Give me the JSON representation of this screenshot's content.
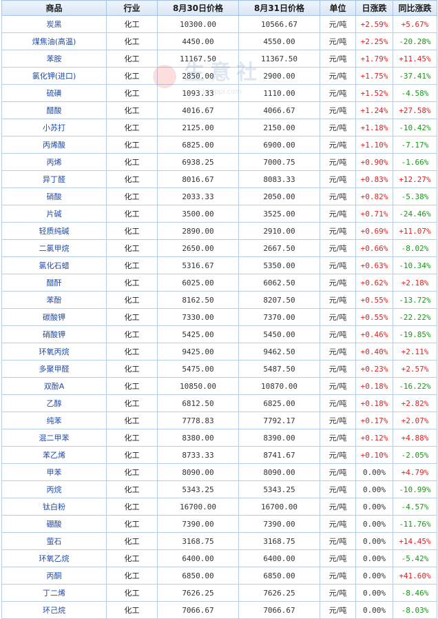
{
  "table": {
    "headers": {
      "product": "商品",
      "industry": "行业",
      "price_aug30": "8月30日价格",
      "price_aug31": "8月31日价格",
      "unit": "单位",
      "daily_change": "日涨跌",
      "yoy_change": "同比涨跌"
    },
    "rows": [
      {
        "product": "炭黑",
        "industry": "化工",
        "price_aug30": "10300.00",
        "price_aug31": "10566.67",
        "unit": "元/吨",
        "daily_change": "+2.59%",
        "yoy_change": "+5.67%"
      },
      {
        "product": "煤焦油(高温)",
        "industry": "化工",
        "price_aug30": "4450.00",
        "price_aug31": "4550.00",
        "unit": "元/吨",
        "daily_change": "+2.25%",
        "yoy_change": "-20.28%"
      },
      {
        "product": "苯胺",
        "industry": "化工",
        "price_aug30": "11167.50",
        "price_aug31": "11367.50",
        "unit": "元/吨",
        "daily_change": "+1.79%",
        "yoy_change": "+11.45%"
      },
      {
        "product": "氯化钾(进口)",
        "industry": "化工",
        "price_aug30": "2850.00",
        "price_aug31": "2900.00",
        "unit": "元/吨",
        "daily_change": "+1.75%",
        "yoy_change": "-37.41%"
      },
      {
        "product": "硫磺",
        "industry": "化工",
        "price_aug30": "1093.33",
        "price_aug31": "1110.00",
        "unit": "元/吨",
        "daily_change": "+1.52%",
        "yoy_change": "-4.58%"
      },
      {
        "product": "醋酸",
        "industry": "化工",
        "price_aug30": "4016.67",
        "price_aug31": "4066.67",
        "unit": "元/吨",
        "daily_change": "+1.24%",
        "yoy_change": "+27.58%"
      },
      {
        "product": "小苏打",
        "industry": "化工",
        "price_aug30": "2125.00",
        "price_aug31": "2150.00",
        "unit": "元/吨",
        "daily_change": "+1.18%",
        "yoy_change": "-10.42%"
      },
      {
        "product": "丙烯酸",
        "industry": "化工",
        "price_aug30": "6825.00",
        "price_aug31": "6900.00",
        "unit": "元/吨",
        "daily_change": "+1.10%",
        "yoy_change": "-7.17%"
      },
      {
        "product": "丙烯",
        "industry": "化工",
        "price_aug30": "6938.25",
        "price_aug31": "7000.75",
        "unit": "元/吨",
        "daily_change": "+0.90%",
        "yoy_change": "-1.66%"
      },
      {
        "product": "异丁醛",
        "industry": "化工",
        "price_aug30": "8016.67",
        "price_aug31": "8083.33",
        "unit": "元/吨",
        "daily_change": "+0.83%",
        "yoy_change": "+12.27%"
      },
      {
        "product": "硝酸",
        "industry": "化工",
        "price_aug30": "2033.33",
        "price_aug31": "2050.00",
        "unit": "元/吨",
        "daily_change": "+0.82%",
        "yoy_change": "-5.38%"
      },
      {
        "product": "片碱",
        "industry": "化工",
        "price_aug30": "3500.00",
        "price_aug31": "3525.00",
        "unit": "元/吨",
        "daily_change": "+0.71%",
        "yoy_change": "-24.46%"
      },
      {
        "product": "轻质纯碱",
        "industry": "化工",
        "price_aug30": "2890.00",
        "price_aug31": "2910.00",
        "unit": "元/吨",
        "daily_change": "+0.69%",
        "yoy_change": "+11.07%"
      },
      {
        "product": "二氯甲烷",
        "industry": "化工",
        "price_aug30": "2650.00",
        "price_aug31": "2667.50",
        "unit": "元/吨",
        "daily_change": "+0.66%",
        "yoy_change": "-8.02%"
      },
      {
        "product": "氯化石蜡",
        "industry": "化工",
        "price_aug30": "5316.67",
        "price_aug31": "5350.00",
        "unit": "元/吨",
        "daily_change": "+0.63%",
        "yoy_change": "-10.34%"
      },
      {
        "product": "醋酐",
        "industry": "化工",
        "price_aug30": "6025.00",
        "price_aug31": "6062.50",
        "unit": "元/吨",
        "daily_change": "+0.62%",
        "yoy_change": "+2.18%"
      },
      {
        "product": "苯酚",
        "industry": "化工",
        "price_aug30": "8162.50",
        "price_aug31": "8207.50",
        "unit": "元/吨",
        "daily_change": "+0.55%",
        "yoy_change": "-13.72%"
      },
      {
        "product": "碳酸钾",
        "industry": "化工",
        "price_aug30": "7330.00",
        "price_aug31": "7370.00",
        "unit": "元/吨",
        "daily_change": "+0.55%",
        "yoy_change": "-22.22%"
      },
      {
        "product": "硝酸钾",
        "industry": "化工",
        "price_aug30": "5425.00",
        "price_aug31": "5450.00",
        "unit": "元/吨",
        "daily_change": "+0.46%",
        "yoy_change": "-19.85%"
      },
      {
        "product": "环氧丙烷",
        "industry": "化工",
        "price_aug30": "9425.00",
        "price_aug31": "9462.50",
        "unit": "元/吨",
        "daily_change": "+0.40%",
        "yoy_change": "+2.11%"
      },
      {
        "product": "多聚甲醛",
        "industry": "化工",
        "price_aug30": "5475.00",
        "price_aug31": "5487.50",
        "unit": "元/吨",
        "daily_change": "+0.23%",
        "yoy_change": "+2.57%"
      },
      {
        "product": "双酚A",
        "industry": "化工",
        "price_aug30": "10850.00",
        "price_aug31": "10870.00",
        "unit": "元/吨",
        "daily_change": "+0.18%",
        "yoy_change": "-16.22%"
      },
      {
        "product": "乙醇",
        "industry": "化工",
        "price_aug30": "6812.50",
        "price_aug31": "6825.00",
        "unit": "元/吨",
        "daily_change": "+0.18%",
        "yoy_change": "+2.82%"
      },
      {
        "product": "纯苯",
        "industry": "化工",
        "price_aug30": "7778.83",
        "price_aug31": "7792.17",
        "unit": "元/吨",
        "daily_change": "+0.17%",
        "yoy_change": "+2.07%"
      },
      {
        "product": "混二甲苯",
        "industry": "化工",
        "price_aug30": "8380.00",
        "price_aug31": "8390.00",
        "unit": "元/吨",
        "daily_change": "+0.12%",
        "yoy_change": "+4.88%"
      },
      {
        "product": "苯乙烯",
        "industry": "化工",
        "price_aug30": "8733.33",
        "price_aug31": "8741.67",
        "unit": "元/吨",
        "daily_change": "+0.10%",
        "yoy_change": "-2.05%"
      },
      {
        "product": "甲苯",
        "industry": "化工",
        "price_aug30": "8090.00",
        "price_aug31": "8090.00",
        "unit": "元/吨",
        "daily_change": "0.00%",
        "yoy_change": "+4.79%"
      },
      {
        "product": "丙烷",
        "industry": "化工",
        "price_aug30": "5343.25",
        "price_aug31": "5343.25",
        "unit": "元/吨",
        "daily_change": "0.00%",
        "yoy_change": "-10.99%"
      },
      {
        "product": "钛白粉",
        "industry": "化工",
        "price_aug30": "16700.00",
        "price_aug31": "16700.00",
        "unit": "元/吨",
        "daily_change": "0.00%",
        "yoy_change": "-4.57%"
      },
      {
        "product": "硼酸",
        "industry": "化工",
        "price_aug30": "7390.00",
        "price_aug31": "7390.00",
        "unit": "元/吨",
        "daily_change": "0.00%",
        "yoy_change": "-11.76%"
      },
      {
        "product": "萤石",
        "industry": "化工",
        "price_aug30": "3168.75",
        "price_aug31": "3168.75",
        "unit": "元/吨",
        "daily_change": "0.00%",
        "yoy_change": "+14.45%"
      },
      {
        "product": "环氧乙烷",
        "industry": "化工",
        "price_aug30": "6400.00",
        "price_aug31": "6400.00",
        "unit": "元/吨",
        "daily_change": "0.00%",
        "yoy_change": "-5.42%"
      },
      {
        "product": "丙酮",
        "industry": "化工",
        "price_aug30": "6850.00",
        "price_aug31": "6850.00",
        "unit": "元/吨",
        "daily_change": "0.00%",
        "yoy_change": "+41.60%"
      },
      {
        "product": "丁二烯",
        "industry": "化工",
        "price_aug30": "7626.25",
        "price_aug31": "7626.25",
        "unit": "元/吨",
        "daily_change": "0.00%",
        "yoy_change": "-8.46%"
      },
      {
        "product": "环己烷",
        "industry": "化工",
        "price_aug30": "7066.67",
        "price_aug31": "7066.67",
        "unit": "元/吨",
        "daily_change": "0.00%",
        "yoy_change": "-8.03%"
      }
    ]
  },
  "watermark": {
    "text": "生意社",
    "url": "100ppi.com"
  },
  "colors": {
    "rise": "#e02020",
    "fall": "#129a12",
    "product_link": "#1f4aa8",
    "header_bg": "#d9e6f5",
    "border": "#b7cde8"
  }
}
